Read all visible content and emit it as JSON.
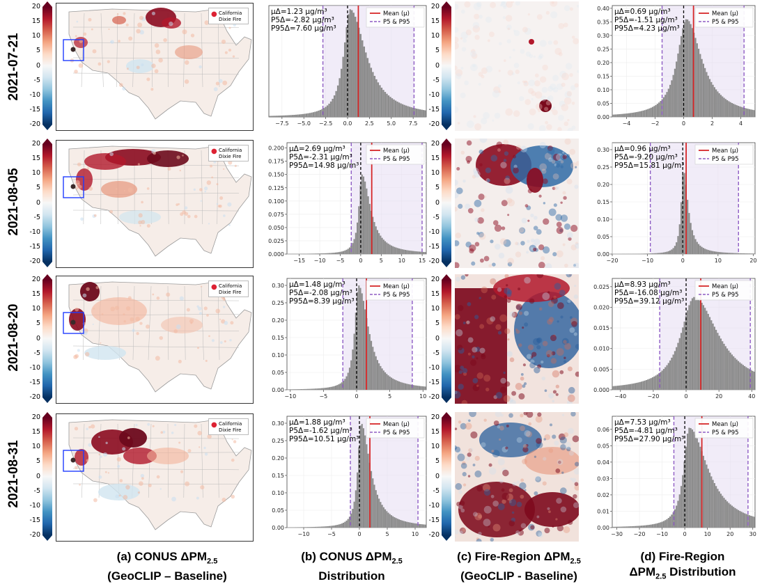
{
  "rows": [
    {
      "date": "2021-07-21"
    },
    {
      "date": "2021-08-05"
    },
    {
      "date": "2021-08-20"
    },
    {
      "date": "2021-08-31"
    }
  ],
  "colorbar_ticks": [
    "20",
    "15",
    "10",
    "5",
    "0",
    "-5",
    "-10",
    "-15",
    "-20"
  ],
  "map_legend": {
    "line1": "California",
    "line2": "Dixie Fire"
  },
  "captions": {
    "a": {
      "line1": "(a) CONUS ΔPM",
      "sub": "2.5",
      "line2": "(GeoCLIP – Baseline)"
    },
    "b": {
      "line1": "(b) CONUS ΔPM",
      "sub": "2.5",
      "line2": "Distribution"
    },
    "c": {
      "line1": "(c) Fire-Region ΔPM",
      "sub": "2.5",
      "line2": "(GeoCLIP - Baseline)"
    },
    "d": {
      "line1": "(d) Fire-Region",
      "line2a": "ΔPM",
      "sub": "2.5",
      "line2b": " Distribution"
    }
  },
  "chart_data": [
    {
      "type": "bar",
      "panel": "CONUS 2021-07-21",
      "stats": [
        "μΔ=1.23 μg/m³",
        "P5Δ=-2.82 μg/m³",
        "P95Δ=7.60 μg/m³"
      ],
      "legend": [
        "Mean (μ)",
        "P5 & P95"
      ],
      "mean": 1.23,
      "p5": -2.82,
      "p95": 7.6,
      "xlim": [
        -9,
        9
      ],
      "ylim": [
        0,
        0.3
      ],
      "xticks": [
        -7.5,
        -5.0,
        -2.5,
        0.0,
        2.5,
        5.0,
        7.5
      ],
      "xticklabels": [
        "−7.5",
        "−5.0",
        "−2.5",
        "0.0",
        "2.5",
        "5.0",
        "7.5"
      ],
      "yticks": [],
      "peak_x": 0.3,
      "peak": 0.29,
      "sl": 0.9,
      "sr": 2.2
    },
    {
      "type": "bar",
      "panel": "CONUS 2021-08-05",
      "stats": [
        "μΔ=2.69 μg/m³",
        "P5Δ=-2.31 μg/m³",
        "P95Δ=14.98 μg/m³"
      ],
      "legend": [
        "Mean (μ)",
        "P5 & P95"
      ],
      "mean": 2.69,
      "p5": -2.31,
      "p95": 14.98,
      "xlim": [
        -18,
        16
      ],
      "ylim": [
        0,
        0.21
      ],
      "xticks": [
        -15,
        -10,
        -5,
        0,
        5,
        10,
        15
      ],
      "xticklabels": [
        "−15",
        "−10",
        "−5",
        "0",
        "5",
        "10",
        "15"
      ],
      "yticks": [
        0,
        0.025,
        0.05,
        0.075,
        0.1,
        0.125,
        0.15,
        0.175,
        0.2
      ],
      "yticklabels": [
        "0.000",
        "0.025",
        "0.050",
        "0.075",
        "0.100",
        "0.125",
        "0.150",
        "0.175",
        "0.200"
      ],
      "peak_x": 0.3,
      "peak": 0.15,
      "sl": 0.9,
      "sr": 2.5
    },
    {
      "type": "bar",
      "panel": "CONUS 2021-08-20",
      "stats": [
        "μΔ=1.48 μg/m³",
        "P5Δ=-2.08 μg/m³",
        "P95Δ=8.39 μg/m³"
      ],
      "legend": [
        "Mean (μ)",
        "P5 & P95"
      ],
      "mean": 1.48,
      "p5": -2.08,
      "p95": 8.39,
      "xlim": [
        -10.5,
        10.5
      ],
      "ylim": [
        0,
        0.32
      ],
      "xticks": [
        -10,
        -5,
        0,
        5,
        10
      ],
      "xticklabels": [
        "−10",
        "−5",
        "0",
        "5",
        "10"
      ],
      "yticks": [
        0,
        0.05,
        0.1,
        0.15,
        0.2,
        0.25,
        0.3
      ],
      "yticklabels": [
        "0.00",
        "0.05",
        "0.10",
        "0.15",
        "0.20",
        "0.25",
        "0.30"
      ],
      "peak_x": 0.3,
      "peak": 0.3,
      "sl": 0.7,
      "sr": 1.8
    },
    {
      "type": "bar",
      "panel": "CONUS 2021-08-31",
      "stats": [
        "μΔ=1.88 μg/m³",
        "P5Δ=-1.62 μg/m³",
        "P95Δ=10.51 μg/m³"
      ],
      "legend": [
        "Mean (μ)",
        "P5 & P95"
      ],
      "mean": 1.88,
      "p5": -1.62,
      "p95": 10.51,
      "xlim": [
        -13,
        12
      ],
      "ylim": [
        0,
        0.32
      ],
      "xticks": [
        -10,
        -5,
        0,
        5,
        10
      ],
      "xticklabels": [
        "−10",
        "−5",
        "0",
        "5",
        "10"
      ],
      "yticks": [
        0,
        0.05,
        0.1,
        0.15,
        0.2,
        0.25,
        0.3
      ],
      "yticklabels": [
        "0.00",
        "0.05",
        "0.10",
        "0.15",
        "0.20",
        "0.25",
        "0.30"
      ],
      "peak_x": 0.3,
      "peak": 0.3,
      "sl": 0.7,
      "sr": 2.0
    },
    {
      "type": "bar",
      "panel": "Fire-Region 2021-07-21",
      "stats": [
        "μΔ=0.69 μg/m³",
        "P5Δ=-1.51 μg/m³",
        "P95Δ=4.23 μg/m³"
      ],
      "legend": [
        "Mean (μ)",
        "P5 & P95"
      ],
      "mean": 0.69,
      "p5": -1.51,
      "p95": 4.23,
      "xlim": [
        -5,
        5
      ],
      "ylim": [
        0,
        0.41
      ],
      "xticks": [
        -4,
        -2,
        0,
        2,
        4
      ],
      "xticklabels": [
        "−4",
        "−2",
        "0",
        "2",
        "4"
      ],
      "yticks": [
        0,
        0.05,
        0.1,
        0.15,
        0.2,
        0.25,
        0.3,
        0.35,
        0.4
      ],
      "yticklabels": [
        "0.00",
        "0.05",
        "0.10",
        "0.15",
        "0.20",
        "0.25",
        "0.30",
        "0.35",
        "0.40"
      ],
      "peak_x": 0.2,
      "peak": 0.36,
      "sl": 0.8,
      "sr": 1.3
    },
    {
      "type": "bar",
      "panel": "Fire-Region 2021-08-05",
      "stats": [
        "μΔ=0.96 μg/m³",
        "P5Δ=-9.20 μg/m³",
        "P95Δ=15.81 μg/m³"
      ],
      "legend": [
        "Mean (μ)",
        "P5 & P95"
      ],
      "mean": 0.96,
      "p5": -9.2,
      "p95": 15.81,
      "xlim": [
        -20,
        20.5
      ],
      "ylim": [
        0,
        0.32
      ],
      "xticks": [
        -20,
        -10,
        0,
        10,
        20
      ],
      "xticklabels": [
        "−20",
        "−10",
        "0",
        "10",
        "20"
      ],
      "yticks": [
        0,
        0.05,
        0.1,
        0.15,
        0.2,
        0.25,
        0.3
      ],
      "yticklabels": [
        "0.00",
        "0.05",
        "0.10",
        "0.15",
        "0.20",
        "0.25",
        "0.30"
      ],
      "peak_x": 0.2,
      "peak": 0.24,
      "sl": 0.8,
      "sr": 1.6
    },
    {
      "type": "bar",
      "panel": "Fire-Region 2021-08-20",
      "stats": [
        "μΔ=8.93 μg/m³",
        "P5Δ=-16.08 μg/m³",
        "P95Δ=39.12 μg/m³"
      ],
      "legend": [
        "Mean (μ)",
        "P5 & P95"
      ],
      "mean": 8.93,
      "p5": -16.08,
      "p95": 39.12,
      "xlim": [
        -45,
        42
      ],
      "ylim": [
        0,
        0.027
      ],
      "xticks": [
        -40,
        -20,
        0,
        20,
        40
      ],
      "xticklabels": [
        "−40",
        "−20",
        "0",
        "20",
        "40"
      ],
      "yticks": [
        0,
        0.005,
        0.01,
        0.015,
        0.02,
        0.025
      ],
      "yticklabels": [
        "0.000",
        "0.005",
        "0.010",
        "0.015",
        "0.020",
        "0.025"
      ],
      "peak_x": 5,
      "peak": 0.0225,
      "sl": 10,
      "sr": 18
    },
    {
      "type": "bar",
      "panel": "Fire-Region 2021-08-31",
      "stats": [
        "μΔ=7.53 μg/m³",
        "P5Δ=-4.81 μg/m³",
        "P95Δ=27.90 μg/m³"
      ],
      "legend": [
        "Mean (μ)",
        "P5 & P95"
      ],
      "mean": 7.53,
      "p5": -4.81,
      "p95": 27.9,
      "xlim": [
        -32,
        31
      ],
      "ylim": [
        0,
        0.068
      ],
      "xticks": [
        -30,
        -20,
        -10,
        0,
        10,
        20,
        30
      ],
      "xticklabels": [
        "−30",
        "−20",
        "−10",
        "0",
        "10",
        "20",
        "30"
      ],
      "yticks": [
        0,
        0.01,
        0.02,
        0.03,
        0.04,
        0.05,
        0.06
      ],
      "yticklabels": [
        "0.00",
        "0.01",
        "0.02",
        "0.03",
        "0.04",
        "0.05",
        "0.06"
      ],
      "peak_x": 2,
      "peak": 0.061,
      "sl": 3,
      "sr": 10
    }
  ]
}
